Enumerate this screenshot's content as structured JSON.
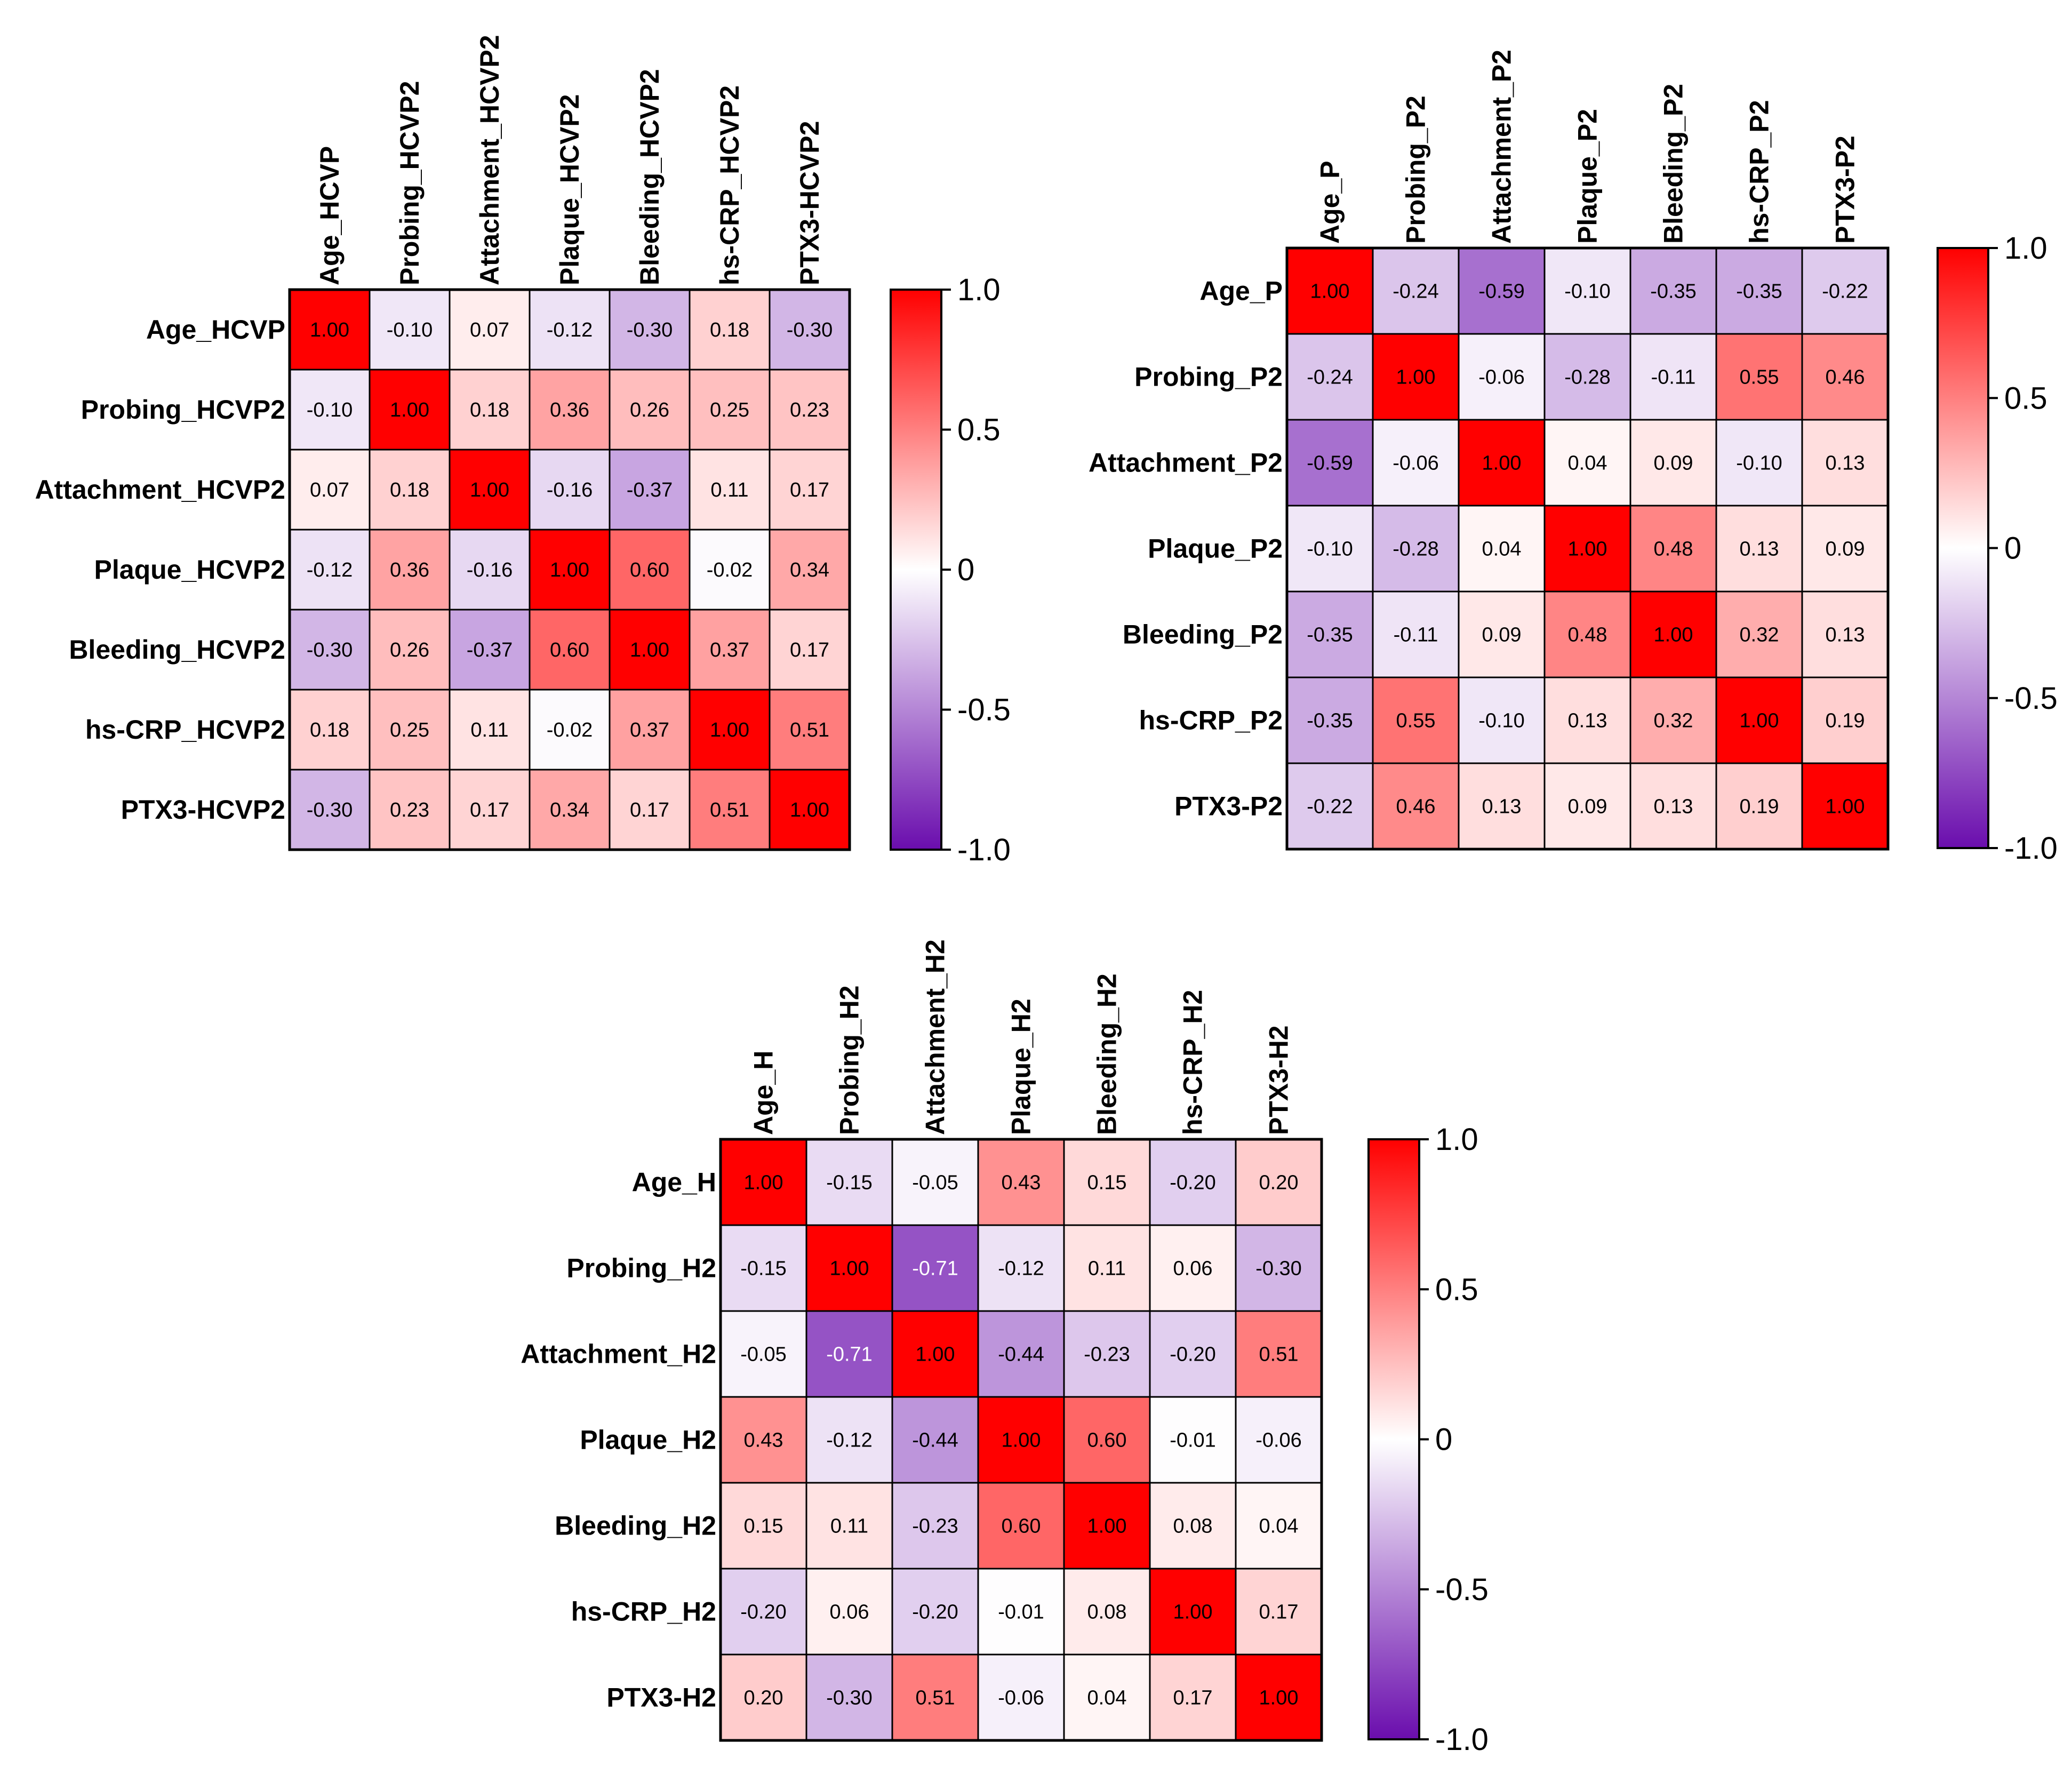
{
  "colors": {
    "positive": "#ff0000",
    "zero": "#ffffff",
    "negative": "#6a0dad",
    "grid": "#000000",
    "text": "#000000"
  },
  "chart_data": [
    {
      "type": "heatmap",
      "row_labels": [
        "Age_HCVP",
        "Probing_HCVP2",
        "Attachment_HCVP2",
        "Plaque_HCVP2",
        "Bleeding_HCVP2",
        "hs-CRP_HCVP2",
        "PTX3-HCVP2"
      ],
      "col_labels": [
        "Age_HCVP",
        "Probing_HCVP2",
        "Attachment_HCVP2",
        "Plaque_HCVP2",
        "Bleeding_HCVP2",
        "hs-CRP_HCVP2",
        "PTX3-HCVP2"
      ],
      "values": [
        [
          1.0,
          -0.1,
          0.07,
          -0.12,
          -0.3,
          0.18,
          -0.3
        ],
        [
          -0.1,
          1.0,
          0.18,
          0.36,
          0.26,
          0.25,
          0.23
        ],
        [
          0.07,
          0.18,
          1.0,
          -0.16,
          -0.37,
          0.11,
          0.17
        ],
        [
          -0.12,
          0.36,
          -0.16,
          1.0,
          0.6,
          -0.02,
          0.34
        ],
        [
          -0.3,
          0.26,
          -0.37,
          0.6,
          1.0,
          0.37,
          0.17
        ],
        [
          0.18,
          0.25,
          0.11,
          -0.02,
          0.37,
          1.0,
          0.51
        ],
        [
          -0.3,
          0.23,
          0.17,
          0.34,
          0.17,
          0.51,
          1.0
        ]
      ],
      "value_labels": [
        [
          "1.00",
          "-0.10",
          "0.07",
          "-0.12",
          "-0.30",
          "0.18",
          "-0.30"
        ],
        [
          "-0.10",
          "1.00",
          "0.18",
          "0.36",
          "0.26",
          "0.25",
          "0.23"
        ],
        [
          "0.07",
          "0.18",
          "1.00",
          "-0.16",
          "-0.37",
          "0.11",
          "0.17"
        ],
        [
          "-0.12",
          "0.36",
          "-0.16",
          "1.00",
          "0.60",
          "-0.02",
          "0.34"
        ],
        [
          "-0.30",
          "0.26",
          "-0.37",
          "0.60",
          "1.00",
          "0.37",
          "0.17"
        ],
        [
          "0.18",
          "0.25",
          "0.11",
          "-0.02",
          "0.37",
          "1.00",
          "0.51"
        ],
        [
          "-0.30",
          "0.23",
          "0.17",
          "0.34",
          "0.17",
          "0.51",
          "1.00"
        ]
      ],
      "color_range": [
        -1.0,
        1.0
      ],
      "colorbar_ticks": [
        "1.0",
        "0.5",
        "0",
        "-0.5",
        "-1.0"
      ]
    },
    {
      "type": "heatmap",
      "row_labels": [
        "Age_P",
        "Probing_P2",
        "Attachment_P2",
        "Plaque_P2",
        "Bleeding_P2",
        "hs-CRP_P2",
        "PTX3-P2"
      ],
      "col_labels": [
        "Age_P",
        "Probing_P2",
        "Attachment_P2",
        "Plaque_P2",
        "Bleeding_P2",
        "hs-CRP_P2",
        "PTX3-P2"
      ],
      "values": [
        [
          1.0,
          -0.24,
          -0.59,
          -0.1,
          -0.35,
          -0.35,
          -0.22
        ],
        [
          -0.24,
          1.0,
          -0.06,
          -0.28,
          -0.11,
          0.55,
          0.46
        ],
        [
          -0.59,
          -0.06,
          1.0,
          0.04,
          0.09,
          -0.1,
          0.13
        ],
        [
          -0.1,
          -0.28,
          0.04,
          1.0,
          0.48,
          0.13,
          0.09
        ],
        [
          -0.35,
          -0.11,
          0.09,
          0.48,
          1.0,
          0.32,
          0.13
        ],
        [
          -0.35,
          0.55,
          -0.1,
          0.13,
          0.32,
          1.0,
          0.19
        ],
        [
          -0.22,
          0.46,
          0.13,
          0.09,
          0.13,
          0.19,
          1.0
        ]
      ],
      "value_labels": [
        [
          "1.00",
          "-0.24",
          "-0.59",
          "-0.10",
          "-0.35",
          "-0.35",
          "-0.22"
        ],
        [
          "-0.24",
          "1.00",
          "-0.06",
          "-0.28",
          "-0.11",
          "0.55",
          "0.46"
        ],
        [
          "-0.59",
          "-0.06",
          "1.00",
          "0.04",
          "0.09",
          "-0.10",
          "0.13"
        ],
        [
          "-0.10",
          "-0.28",
          "0.04",
          "1.00",
          "0.48",
          "0.13",
          "0.09"
        ],
        [
          "-0.35",
          "-0.11",
          "0.09",
          "0.48",
          "1.00",
          "0.32",
          "0.13"
        ],
        [
          "-0.35",
          "0.55",
          "-0.10",
          "0.13",
          "0.32",
          "1.00",
          "0.19"
        ],
        [
          "-0.22",
          "0.46",
          "0.13",
          "0.09",
          "0.13",
          "0.19",
          "1.00"
        ]
      ],
      "color_range": [
        -1.0,
        1.0
      ],
      "colorbar_ticks": [
        "1.0",
        "0.5",
        "0",
        "-0.5",
        "-1.0"
      ]
    },
    {
      "type": "heatmap",
      "row_labels": [
        "Age_H",
        "Probing_H2",
        "Attachment_H2",
        "Plaque_H2",
        "Bleeding_H2",
        "hs-CRP_H2",
        "PTX3-H2"
      ],
      "col_labels": [
        "Age_H",
        "Probing_H2",
        "Attachment_H2",
        "Plaque_H2",
        "Bleeding_H2",
        "hs-CRP_H2",
        "PTX3-H2"
      ],
      "values": [
        [
          1.0,
          -0.15,
          -0.05,
          0.43,
          0.15,
          -0.2,
          0.2
        ],
        [
          -0.15,
          1.0,
          -0.71,
          -0.12,
          0.11,
          0.06,
          -0.3
        ],
        [
          -0.05,
          -0.71,
          1.0,
          -0.44,
          -0.23,
          -0.2,
          0.51
        ],
        [
          0.43,
          -0.12,
          -0.44,
          1.0,
          0.6,
          -0.01,
          -0.06
        ],
        [
          0.15,
          0.11,
          -0.23,
          0.6,
          1.0,
          0.08,
          0.04
        ],
        [
          -0.2,
          0.06,
          -0.2,
          -0.01,
          0.08,
          1.0,
          0.17
        ],
        [
          0.2,
          -0.3,
          0.51,
          -0.06,
          0.04,
          0.17,
          1.0
        ]
      ],
      "value_labels": [
        [
          "1.00",
          "-0.15",
          "-0.05",
          "0.43",
          "0.15",
          "-0.20",
          "0.20"
        ],
        [
          "-0.15",
          "1.00",
          "-0.71",
          "-0.12",
          "0.11",
          "0.06",
          "-0.30"
        ],
        [
          "-0.05",
          "-0.71",
          "1.00",
          "-0.44",
          "-0.23",
          "-0.20",
          "0.51"
        ],
        [
          "0.43",
          "-0.12",
          "-0.44",
          "1.00",
          "0.60",
          "-0.01",
          "-0.06"
        ],
        [
          "0.15",
          "0.11",
          "-0.23",
          "0.60",
          "1.00",
          "0.08",
          "0.04"
        ],
        [
          "-0.20",
          "0.06",
          "-0.20",
          "-0.01",
          "0.08",
          "1.00",
          "0.17"
        ],
        [
          "0.20",
          "-0.30",
          "0.51",
          "-0.06",
          "0.04",
          "0.17",
          "1.00"
        ]
      ],
      "color_range": [
        -1.0,
        1.0
      ],
      "colorbar_ticks": [
        "1.0",
        "0.5",
        "0",
        "-0.5",
        "-1.0"
      ]
    }
  ]
}
